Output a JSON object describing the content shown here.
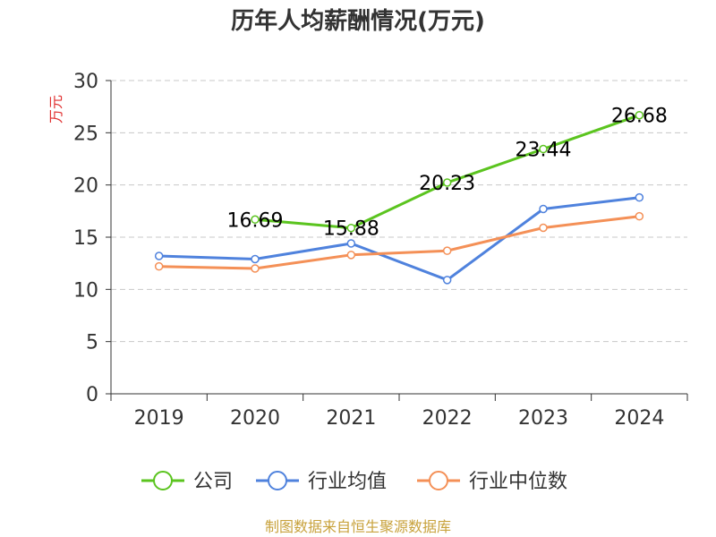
{
  "chart_data": {
    "type": "line",
    "title": "历年人均薪酬情况(万元)",
    "ylabel": "万元",
    "xlabel": "",
    "categories": [
      "2019",
      "2020",
      "2021",
      "2022",
      "2023",
      "2024"
    ],
    "ylim": [
      0,
      30
    ],
    "yticks": [
      0,
      5,
      10,
      15,
      20,
      25,
      30
    ],
    "grid": true,
    "legend_position": "bottom",
    "series": [
      {
        "name": "公司",
        "color": "#5bc41f",
        "values": [
          null,
          16.69,
          15.88,
          20.23,
          23.44,
          26.68
        ],
        "show_labels": true
      },
      {
        "name": "行业均值",
        "color": "#4f82dd",
        "values": [
          13.2,
          12.9,
          14.4,
          10.9,
          17.7,
          18.8
        ],
        "show_labels": false
      },
      {
        "name": "行业中位数",
        "color": "#f49057",
        "values": [
          12.2,
          12.0,
          13.3,
          13.7,
          15.9,
          17.0
        ],
        "show_labels": false
      }
    ]
  },
  "source": "制图数据来自恒生聚源数据库",
  "colors": {
    "title": "#333333",
    "ylabel": "#e03030",
    "source": "#c8a23c",
    "axis": "#333333",
    "grid": "#c8c8c8"
  }
}
